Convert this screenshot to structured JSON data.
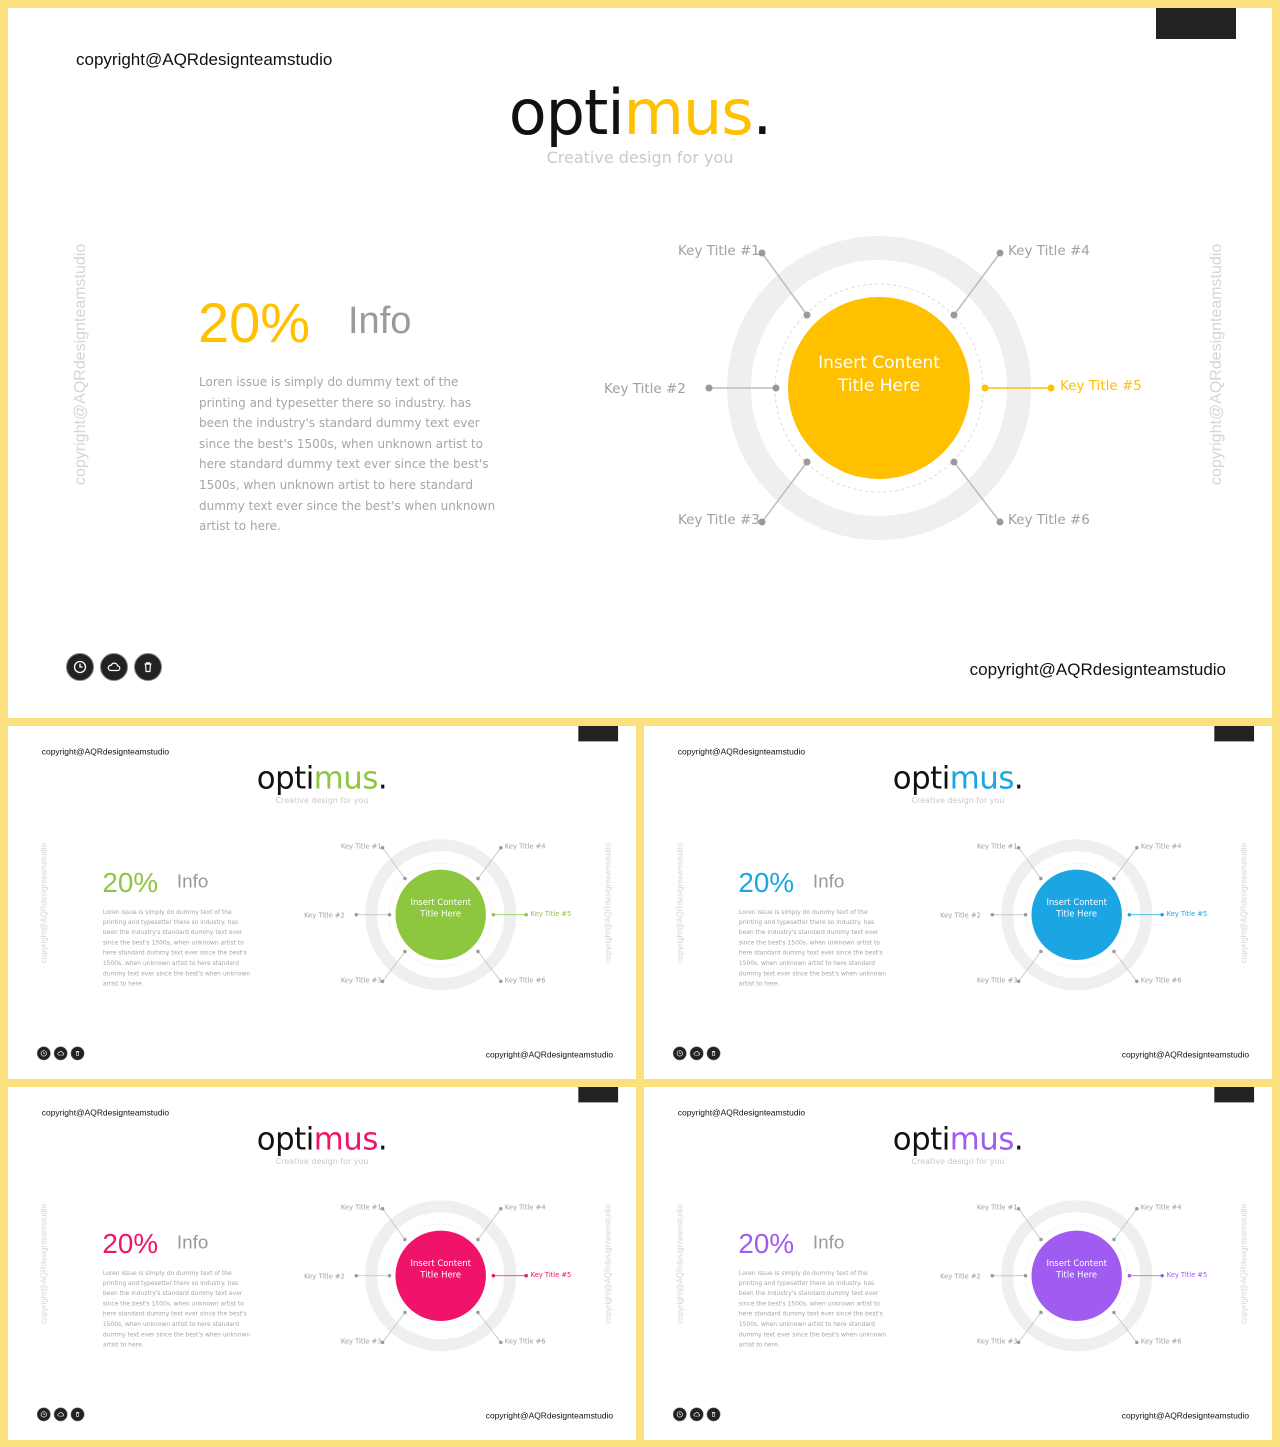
{
  "brand": {
    "copyright": "copyright@AQRdesignteamstudio",
    "logo_prefix": "opti",
    "logo_accent": "mus",
    "logo_dot": ".",
    "tagline": "Creative design for you"
  },
  "content": {
    "percent": "20%",
    "info_label": "Info",
    "body": "Loren issue is simply do dummy text of the printing and typesetter there so industry. has been the industry's standard dummy text ever since the best's 1500s, when unknown artist to here standard dummy text ever since the best's 1500s, when unknown artist to here standard dummy text ever since the best's when unknown artist to here.",
    "circle_title": "Insert Content Title Here",
    "key_titles": [
      "Key Title #1",
      "Key Title #2",
      "Key Title #3",
      "Key Title #4",
      "Key Title #5",
      "Key Title #6"
    ]
  },
  "icons": [
    "clock-icon",
    "cloud-icon",
    "trash-icon"
  ],
  "slides": [
    {
      "name": "slide-yellow",
      "accent": "#FFC000"
    },
    {
      "name": "slide-green",
      "accent": "#8DC63F"
    },
    {
      "name": "slide-cyan",
      "accent": "#1BA6E3"
    },
    {
      "name": "slide-pink",
      "accent": "#F0136A"
    },
    {
      "name": "slide-purple",
      "accent": "#A05CF0"
    }
  ]
}
